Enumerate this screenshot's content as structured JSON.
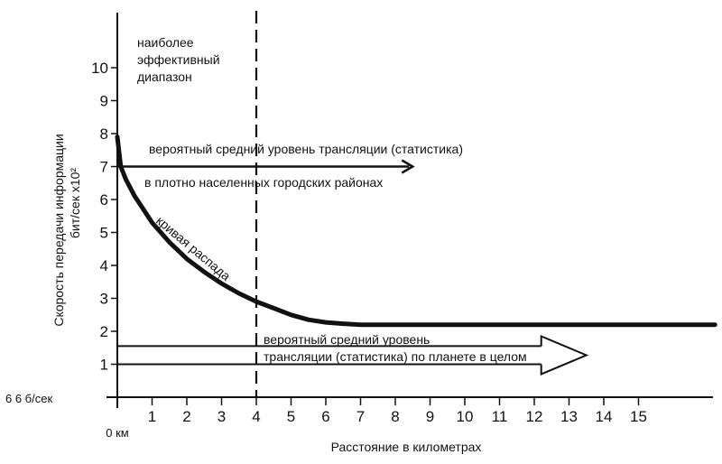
{
  "chart_data": {
    "type": "line",
    "xlabel": "Расстояние в километрах",
    "ylabel_line1": "Скорость передачи информации",
    "ylabel_line2": "бит/сек х10²",
    "x_ticks": [
      "0",
      "1",
      "2",
      "3",
      "4",
      "5",
      "6",
      "7",
      "8",
      "9",
      "10",
      "11",
      "12",
      "13",
      "14",
      "15"
    ],
    "x_zero_unit": "0 км",
    "y_ticks": [
      "1",
      "2",
      "3",
      "4",
      "5",
      "6",
      "7",
      "8",
      "9",
      "10"
    ],
    "y_baseline_label": "6 6 б/сек",
    "xlim": [
      0,
      17.2
    ],
    "ylim": [
      0,
      11
    ],
    "series": [
      {
        "name": "кривая распада",
        "x": [
          0,
          0.1,
          0.25,
          0.5,
          0.75,
          1,
          1.5,
          2,
          2.5,
          3,
          3.5,
          4,
          4.5,
          5,
          5.5,
          6,
          6.5,
          7,
          8,
          10,
          12,
          14,
          17.2
        ],
        "y": [
          7.9,
          7.0,
          6.6,
          6.1,
          5.7,
          5.3,
          4.7,
          4.2,
          3.8,
          3.45,
          3.15,
          2.9,
          2.7,
          2.5,
          2.35,
          2.27,
          2.23,
          2.2,
          2.2,
          2.2,
          2.2,
          2.2,
          2.2
        ]
      }
    ],
    "dashed_line": {
      "x": 4
    },
    "annotations": {
      "effective_range": [
        "наиболее",
        "эффективный",
        "диапазон"
      ],
      "urban_level_line1": "вероятный средний уровень трансляции (статистика)",
      "urban_level_line2": "в плотно населенных городских районах",
      "curve_label": "кривая распада",
      "global_level_line1": "вероятный средний уровень",
      "global_level_line2": "трансляции (статистика) по планете в целом"
    },
    "urban_arrow": {
      "x_start": 0,
      "x_end": 8.5,
      "y": 7.0
    },
    "global_arrow": {
      "x_start": 0,
      "x_body_end": 12.2,
      "x_tip": 13.5,
      "y_top": 1.55,
      "y_bottom": 1.0
    }
  }
}
